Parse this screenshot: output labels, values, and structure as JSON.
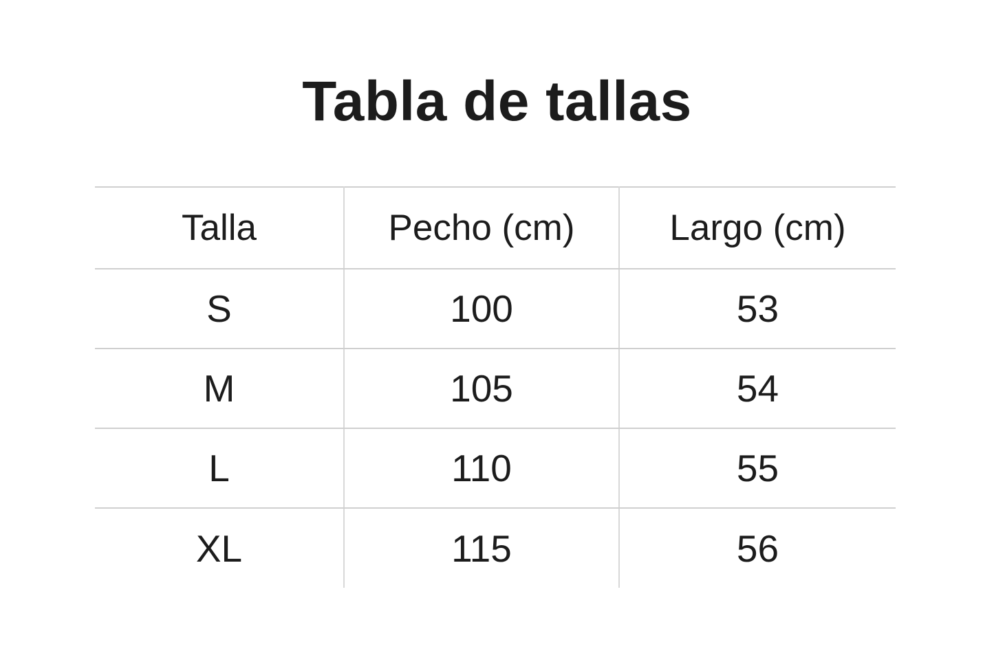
{
  "page": {
    "title": "Tabla de tallas",
    "colors": {
      "background": "#ffffff",
      "text": "#1c1c1c",
      "grid_line_horizontal": "#cfcfcf",
      "grid_line_vertical": "#d8d8d8"
    }
  },
  "table": {
    "headers": [
      "Talla",
      "Pecho (cm)",
      "Largo (cm)"
    ],
    "rows": [
      [
        "S",
        "100",
        "53"
      ],
      [
        "M",
        "105",
        "54"
      ],
      [
        "L",
        "110",
        "55"
      ],
      [
        "XL",
        "115",
        "56"
      ]
    ]
  },
  "chart_data": {
    "type": "table",
    "title": "Tabla de tallas",
    "columns": [
      "Talla",
      "Pecho (cm)",
      "Largo (cm)"
    ],
    "rows": [
      [
        "S",
        100,
        53
      ],
      [
        "M",
        105,
        54
      ],
      [
        "L",
        110,
        55
      ],
      [
        "XL",
        115,
        56
      ]
    ],
    "layout": {
      "title_position": "top-center",
      "column_alignment": "center",
      "outer_borders": [
        "top"
      ],
      "inner_borders": [
        "row-dividers",
        "column-dividers"
      ]
    }
  }
}
